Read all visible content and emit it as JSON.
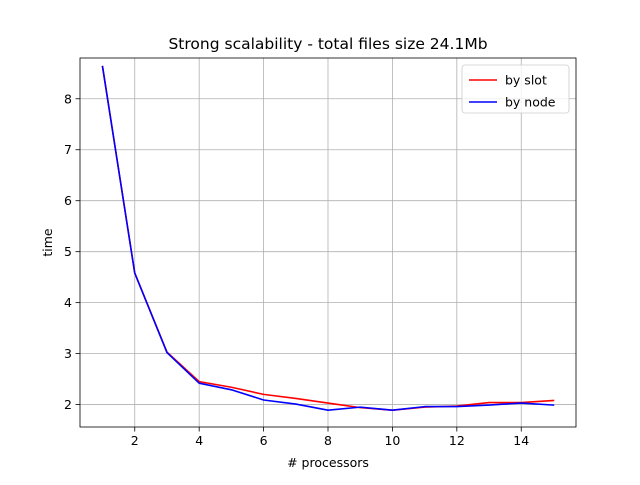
{
  "chart_data": {
    "type": "line",
    "title": "Strong scalability - total files size 24.1Mb",
    "xlabel": "# processors",
    "ylabel": "time",
    "xlim": [
      0.3,
      15.7
    ],
    "ylim": [
      1.56,
      8.8
    ],
    "xticks": [
      2,
      4,
      6,
      8,
      10,
      12,
      14
    ],
    "yticks": [
      2,
      3,
      4,
      5,
      6,
      7,
      8
    ],
    "grid": true,
    "legend_position": "top-right",
    "x": [
      1,
      2,
      3,
      4,
      5,
      6,
      7,
      8,
      9,
      10,
      11,
      12,
      13,
      14,
      15
    ],
    "series": [
      {
        "name": "by slot",
        "color": "#ff0000",
        "values": [
          8.63,
          4.58,
          3.03,
          2.45,
          2.34,
          2.2,
          2.12,
          2.03,
          1.94,
          1.89,
          1.95,
          1.97,
          2.04,
          2.04,
          2.08
        ]
      },
      {
        "name": "by node",
        "color": "#0000ff",
        "values": [
          8.63,
          4.58,
          3.02,
          2.42,
          2.29,
          2.09,
          2.01,
          1.89,
          1.95,
          1.89,
          1.96,
          1.96,
          1.99,
          2.03,
          1.99
        ]
      }
    ]
  }
}
